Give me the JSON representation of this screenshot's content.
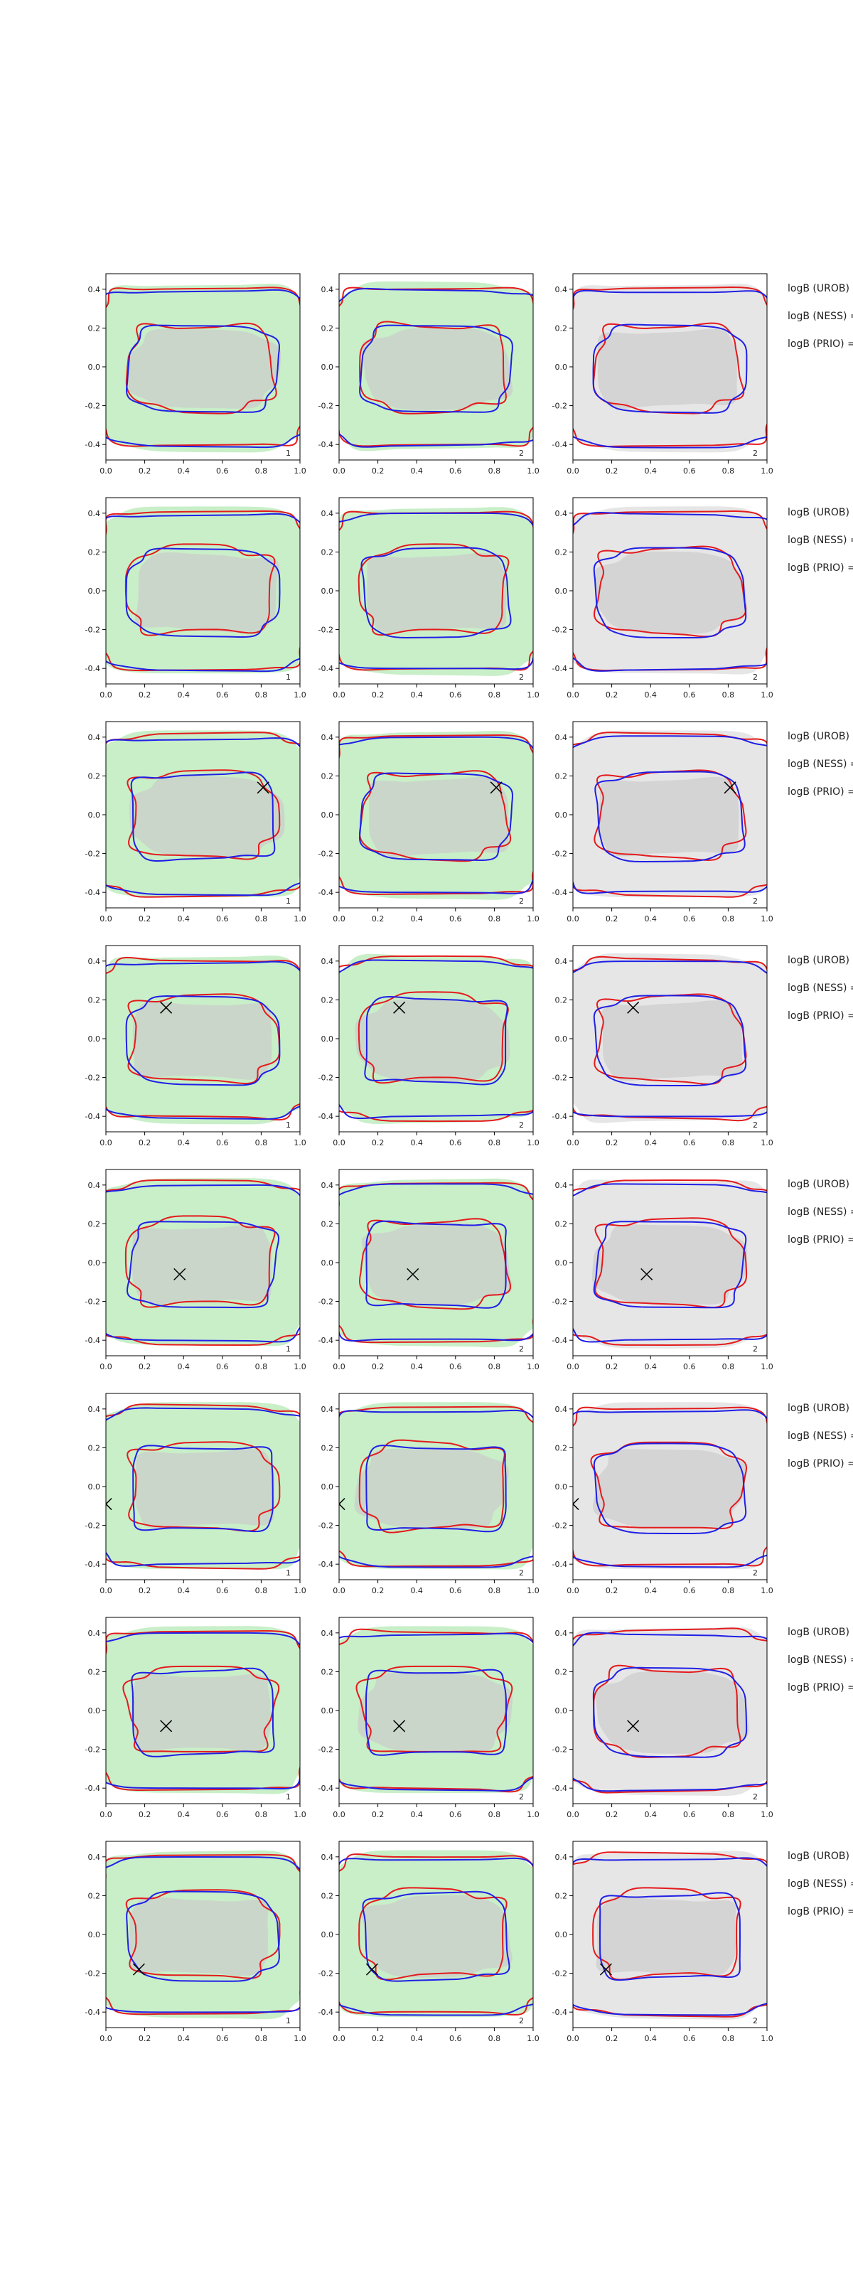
{
  "chart_data": {
    "type": "contour-grid",
    "x_range": [
      0.0,
      1.0
    ],
    "y_range": [
      -0.48,
      0.48
    ],
    "x_ticks": [
      "0.0",
      "0.2",
      "0.4",
      "0.6",
      "0.8",
      "1.0"
    ],
    "y_ticks": [
      "0.4",
      "0.2",
      "0.0",
      "-0.2",
      "-0.4"
    ],
    "column_labels": [
      "1",
      "2",
      "2"
    ],
    "column_fills": [
      "#c8efc8",
      "#c8efc8",
      "#e6e6e6"
    ],
    "inner_fill": "#cccccc",
    "series_colors": {
      "red": "#e41a1c",
      "blue": "#1f1fe6"
    },
    "side_labels": [
      "logB (UROB) =",
      "logB (NESS) =",
      "logB (PRIO) ="
    ],
    "rows": [
      {
        "marker": null
      },
      {
        "marker": null
      },
      {
        "marker": [
          0.81,
          0.14
        ]
      },
      {
        "marker": [
          0.31,
          0.16
        ]
      },
      {
        "marker": [
          0.38,
          -0.06
        ]
      },
      {
        "marker": [
          0.0,
          -0.09
        ]
      },
      {
        "marker": [
          0.31,
          -0.08
        ]
      },
      {
        "marker": [
          0.17,
          -0.18
        ]
      }
    ]
  }
}
